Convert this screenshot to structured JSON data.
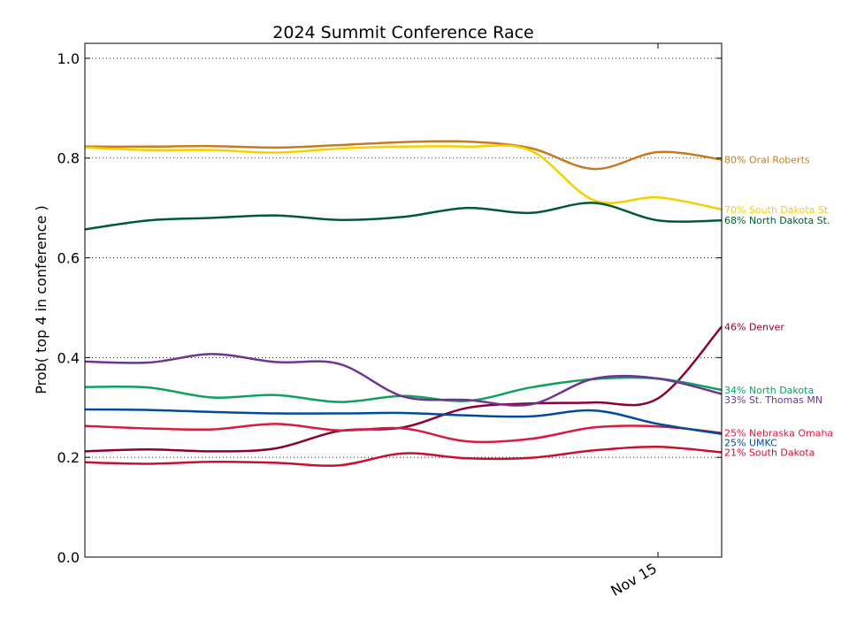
{
  "chart_data": {
    "type": "line",
    "title": "2024 Summit Conference Race",
    "ylabel": "Prob( top 4 in conference )",
    "xlabel": "",
    "ylim": [
      0,
      1.03
    ],
    "yticks": [
      0.0,
      0.2,
      0.4,
      0.6,
      0.8,
      1.0
    ],
    "ytick_labels": [
      "0.0",
      "0.2",
      "0.4",
      "0.6",
      "0.8",
      "1.0"
    ],
    "x_tick_labels": [
      {
        "label": "Nov 15",
        "x": 9
      }
    ],
    "x": [
      0,
      1,
      2,
      3,
      4,
      5,
      6,
      7,
      8,
      9,
      10
    ],
    "xlim": [
      0,
      10
    ],
    "grid": "horizontal dotted",
    "series": [
      {
        "name": "Oral Roberts",
        "end_label": "80% Oral Roberts",
        "color": "#c87a1e",
        "values": [
          0.823,
          0.823,
          0.824,
          0.821,
          0.826,
          0.832,
          0.833,
          0.82,
          0.778,
          0.812,
          0.797
        ]
      },
      {
        "name": "South Dakota St.",
        "end_label": "70% South Dakota St.",
        "color": "#f5d000",
        "values": [
          0.821,
          0.816,
          0.816,
          0.811,
          0.819,
          0.823,
          0.823,
          0.815,
          0.715,
          0.721,
          0.697
        ]
      },
      {
        "name": "North Dakota St.",
        "end_label": "68% North Dakota St.",
        "color": "#005a32",
        "values": [
          0.657,
          0.675,
          0.68,
          0.685,
          0.676,
          0.682,
          0.7,
          0.69,
          0.71,
          0.675,
          0.675
        ]
      },
      {
        "name": "Denver",
        "end_label": "46% Denver",
        "color": "#8b0034",
        "values": [
          0.212,
          0.216,
          0.212,
          0.218,
          0.253,
          0.26,
          0.299,
          0.308,
          0.31,
          0.318,
          0.462
        ]
      },
      {
        "name": "North Dakota",
        "end_label": "34% North Dakota",
        "color": "#10a060",
        "values": [
          0.341,
          0.34,
          0.32,
          0.325,
          0.311,
          0.323,
          0.313,
          0.34,
          0.357,
          0.358,
          0.335
        ]
      },
      {
        "name": "St. Thomas MN",
        "end_label": "33% St. Thomas MN",
        "color": "#6b3597",
        "values": [
          0.392,
          0.39,
          0.407,
          0.391,
          0.387,
          0.322,
          0.315,
          0.306,
          0.358,
          0.358,
          0.327
        ]
      },
      {
        "name": "Nebraska Omaha",
        "end_label": "25% Nebraska Omaha",
        "color": "#d81b3c",
        "values": [
          0.263,
          0.258,
          0.256,
          0.267,
          0.254,
          0.258,
          0.232,
          0.237,
          0.26,
          0.262,
          0.249
        ]
      },
      {
        "name": "UMKC",
        "end_label": "25% UMKC",
        "color": "#004b9c",
        "values": [
          0.296,
          0.295,
          0.291,
          0.288,
          0.288,
          0.289,
          0.284,
          0.282,
          0.294,
          0.267,
          0.247
        ]
      },
      {
        "name": "South Dakota",
        "end_label": "21% South Dakota",
        "color": "#c8102e",
        "values": [
          0.19,
          0.187,
          0.191,
          0.189,
          0.184,
          0.208,
          0.198,
          0.199,
          0.214,
          0.221,
          0.21
        ]
      }
    ]
  }
}
